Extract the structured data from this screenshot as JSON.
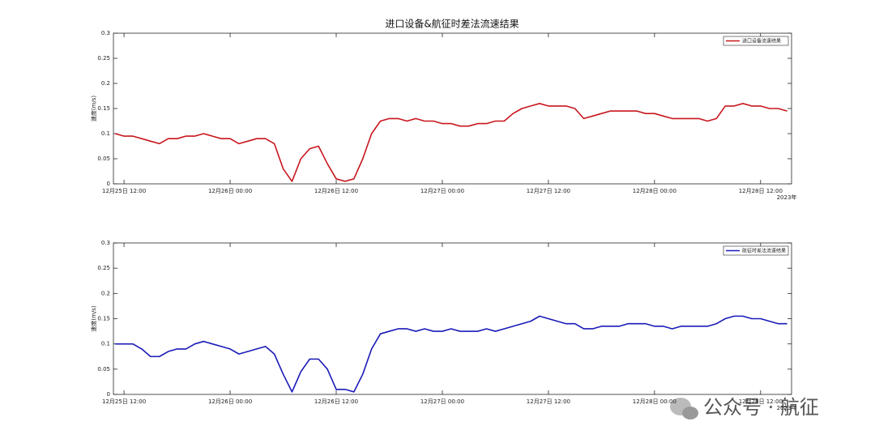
{
  "chart_data": [
    {
      "type": "line",
      "title": "进口设备&航征时差法流速结果",
      "ylabel": "速度(m/s)",
      "x_axis_year": "2023年",
      "legend": "upper right",
      "x": [
        "2023-12-25 11:00",
        "2023-12-25 12:00",
        "2023-12-25 13:00",
        "2023-12-25 14:00",
        "2023-12-25 15:00",
        "2023-12-25 16:00",
        "2023-12-25 17:00",
        "2023-12-25 18:00",
        "2023-12-25 19:00",
        "2023-12-25 20:00",
        "2023-12-25 21:00",
        "2023-12-25 22:00",
        "2023-12-25 23:00",
        "2023-12-26 00:00",
        "2023-12-26 01:00",
        "2023-12-26 02:00",
        "2023-12-26 03:00",
        "2023-12-26 04:00",
        "2023-12-26 05:00",
        "2023-12-26 06:00",
        "2023-12-26 07:00",
        "2023-12-26 08:00",
        "2023-12-26 09:00",
        "2023-12-26 10:00",
        "2023-12-26 11:00",
        "2023-12-26 12:00",
        "2023-12-26 13:00",
        "2023-12-26 14:00",
        "2023-12-26 15:00",
        "2023-12-26 16:00",
        "2023-12-26 17:00",
        "2023-12-26 18:00",
        "2023-12-26 19:00",
        "2023-12-26 20:00",
        "2023-12-26 21:00",
        "2023-12-26 22:00",
        "2023-12-26 23:00",
        "2023-12-27 00:00",
        "2023-12-27 01:00",
        "2023-12-27 02:00",
        "2023-12-27 03:00",
        "2023-12-27 04:00",
        "2023-12-27 05:00",
        "2023-12-27 06:00",
        "2023-12-27 07:00",
        "2023-12-27 08:00",
        "2023-12-27 09:00",
        "2023-12-27 10:00",
        "2023-12-27 11:00",
        "2023-12-27 12:00",
        "2023-12-27 13:00",
        "2023-12-27 14:00",
        "2023-12-27 15:00",
        "2023-12-27 16:00",
        "2023-12-27 17:00",
        "2023-12-27 18:00",
        "2023-12-27 19:00",
        "2023-12-27 20:00",
        "2023-12-27 21:00",
        "2023-12-27 22:00",
        "2023-12-27 23:00",
        "2023-12-28 00:00",
        "2023-12-28 01:00",
        "2023-12-28 02:00",
        "2023-12-28 03:00",
        "2023-12-28 04:00",
        "2023-12-28 05:00",
        "2023-12-28 06:00",
        "2023-12-28 07:00",
        "2023-12-28 08:00",
        "2023-12-28 09:00",
        "2023-12-28 10:00",
        "2023-12-28 11:00",
        "2023-12-28 12:00",
        "2023-12-28 13:00",
        "2023-12-28 14:00",
        "2023-12-28 15:00"
      ],
      "series": [
        {
          "name": "进口设备流速结果",
          "color": "#c8161d",
          "values": [
            0.1,
            0.095,
            0.095,
            0.09,
            0.085,
            0.08,
            0.09,
            0.09,
            0.095,
            0.095,
            0.1,
            0.095,
            0.09,
            0.09,
            0.08,
            0.085,
            0.09,
            0.09,
            0.08,
            0.03,
            0.005,
            0.05,
            0.07,
            0.075,
            0.04,
            0.01,
            0.005,
            0.01,
            0.05,
            0.1,
            0.125,
            0.13,
            0.13,
            0.125,
            0.13,
            0.125,
            0.125,
            0.12,
            0.12,
            0.115,
            0.115,
            0.12,
            0.12,
            0.125,
            0.125,
            0.14,
            0.15,
            0.155,
            0.16,
            0.155,
            0.155,
            0.155,
            0.15,
            0.13,
            0.135,
            0.14,
            0.145,
            0.145,
            0.145,
            0.145,
            0.14,
            0.14,
            0.135,
            0.13,
            0.13,
            0.13,
            0.13,
            0.125,
            0.13,
            0.155,
            0.155,
            0.16,
            0.155,
            0.155,
            0.15,
            0.15,
            0.145
          ]
        }
      ],
      "xlim": [
        "2023-12-25 10:48",
        "2023-12-28 15:30"
      ],
      "xticks": [
        {
          "value": "2023-12-25 12:00",
          "label": "12月25日 12:00"
        },
        {
          "value": "2023-12-26 00:00",
          "label": "12月26日 00:00"
        },
        {
          "value": "2023-12-26 12:00",
          "label": "12月26日 12:00"
        },
        {
          "value": "2023-12-27 00:00",
          "label": "12月27日 00:00"
        },
        {
          "value": "2023-12-27 12:00",
          "label": "12月27日 12:00"
        },
        {
          "value": "2023-12-28 00:00",
          "label": "12月28日 00:00"
        },
        {
          "value": "2023-12-28 12:00",
          "label": "12月28日 12:00"
        }
      ],
      "ylim": [
        0,
        0.3
      ],
      "yticks": [
        0,
        0.05,
        0.1,
        0.15,
        0.2,
        0.25,
        0.3
      ]
    },
    {
      "type": "line",
      "ylabel": "速度(m/s)",
      "x_axis_year": "2023年",
      "legend": "upper right",
      "x": [
        "2023-12-25 11:00",
        "2023-12-25 12:00",
        "2023-12-25 13:00",
        "2023-12-25 14:00",
        "2023-12-25 15:00",
        "2023-12-25 16:00",
        "2023-12-25 17:00",
        "2023-12-25 18:00",
        "2023-12-25 19:00",
        "2023-12-25 20:00",
        "2023-12-25 21:00",
        "2023-12-25 22:00",
        "2023-12-25 23:00",
        "2023-12-26 00:00",
        "2023-12-26 01:00",
        "2023-12-26 02:00",
        "2023-12-26 03:00",
        "2023-12-26 04:00",
        "2023-12-26 05:00",
        "2023-12-26 06:00",
        "2023-12-26 07:00",
        "2023-12-26 08:00",
        "2023-12-26 09:00",
        "2023-12-26 10:00",
        "2023-12-26 11:00",
        "2023-12-26 12:00",
        "2023-12-26 13:00",
        "2023-12-26 14:00",
        "2023-12-26 15:00",
        "2023-12-26 16:00",
        "2023-12-26 17:00",
        "2023-12-26 18:00",
        "2023-12-26 19:00",
        "2023-12-26 20:00",
        "2023-12-26 21:00",
        "2023-12-26 22:00",
        "2023-12-26 23:00",
        "2023-12-27 00:00",
        "2023-12-27 01:00",
        "2023-12-27 02:00",
        "2023-12-27 03:00",
        "2023-12-27 04:00",
        "2023-12-27 05:00",
        "2023-12-27 06:00",
        "2023-12-27 07:00",
        "2023-12-27 08:00",
        "2023-12-27 09:00",
        "2023-12-27 10:00",
        "2023-12-27 11:00",
        "2023-12-27 12:00",
        "2023-12-27 13:00",
        "2023-12-27 14:00",
        "2023-12-27 15:00",
        "2023-12-27 16:00",
        "2023-12-27 17:00",
        "2023-12-27 18:00",
        "2023-12-27 19:00",
        "2023-12-27 20:00",
        "2023-12-27 21:00",
        "2023-12-27 22:00",
        "2023-12-27 23:00",
        "2023-12-28 00:00",
        "2023-12-28 01:00",
        "2023-12-28 02:00",
        "2023-12-28 03:00",
        "2023-12-28 04:00",
        "2023-12-28 05:00",
        "2023-12-28 06:00",
        "2023-12-28 07:00",
        "2023-12-28 08:00",
        "2023-12-28 09:00",
        "2023-12-28 10:00",
        "2023-12-28 11:00",
        "2023-12-28 12:00",
        "2023-12-28 13:00",
        "2023-12-28 14:00",
        "2023-12-28 15:00"
      ],
      "series": [
        {
          "name": "航征时差法流速结果",
          "color": "#1a1ab8",
          "values": [
            0.1,
            0.1,
            0.1,
            0.09,
            0.075,
            0.075,
            0.085,
            0.09,
            0.09,
            0.1,
            0.105,
            0.1,
            0.095,
            0.09,
            0.08,
            0.085,
            0.09,
            0.095,
            0.08,
            0.04,
            0.005,
            0.045,
            0.07,
            0.07,
            0.05,
            0.01,
            0.01,
            0.005,
            0.04,
            0.09,
            0.12,
            0.125,
            0.13,
            0.13,
            0.125,
            0.13,
            0.125,
            0.125,
            0.13,
            0.125,
            0.125,
            0.125,
            0.13,
            0.125,
            0.13,
            0.135,
            0.14,
            0.145,
            0.155,
            0.15,
            0.145,
            0.14,
            0.14,
            0.13,
            0.13,
            0.135,
            0.135,
            0.135,
            0.14,
            0.14,
            0.14,
            0.135,
            0.135,
            0.13,
            0.135,
            0.135,
            0.135,
            0.135,
            0.14,
            0.15,
            0.155,
            0.155,
            0.15,
            0.15,
            0.145,
            0.14,
            0.14
          ]
        }
      ],
      "xlim": [
        "2023-12-25 10:48",
        "2023-12-28 15:30"
      ],
      "xticks": [
        {
          "value": "2023-12-25 12:00",
          "label": "12月25日 12:00"
        },
        {
          "value": "2023-12-26 00:00",
          "label": "12月26日 00:00"
        },
        {
          "value": "2023-12-26 12:00",
          "label": "12月26日 12:00"
        },
        {
          "value": "2023-12-27 00:00",
          "label": "12月27日 00:00"
        },
        {
          "value": "2023-12-27 12:00",
          "label": "12月27日 12:00"
        },
        {
          "value": "2023-12-28 00:00",
          "label": "12月28日 00:00"
        },
        {
          "value": "2023-12-28 12:00",
          "label": "12月28日 12:00"
        }
      ],
      "ylim": [
        0,
        0.3
      ],
      "yticks": [
        0,
        0.05,
        0.1,
        0.15,
        0.2,
        0.25,
        0.3
      ]
    }
  ],
  "watermark": "公众号 · 航征"
}
